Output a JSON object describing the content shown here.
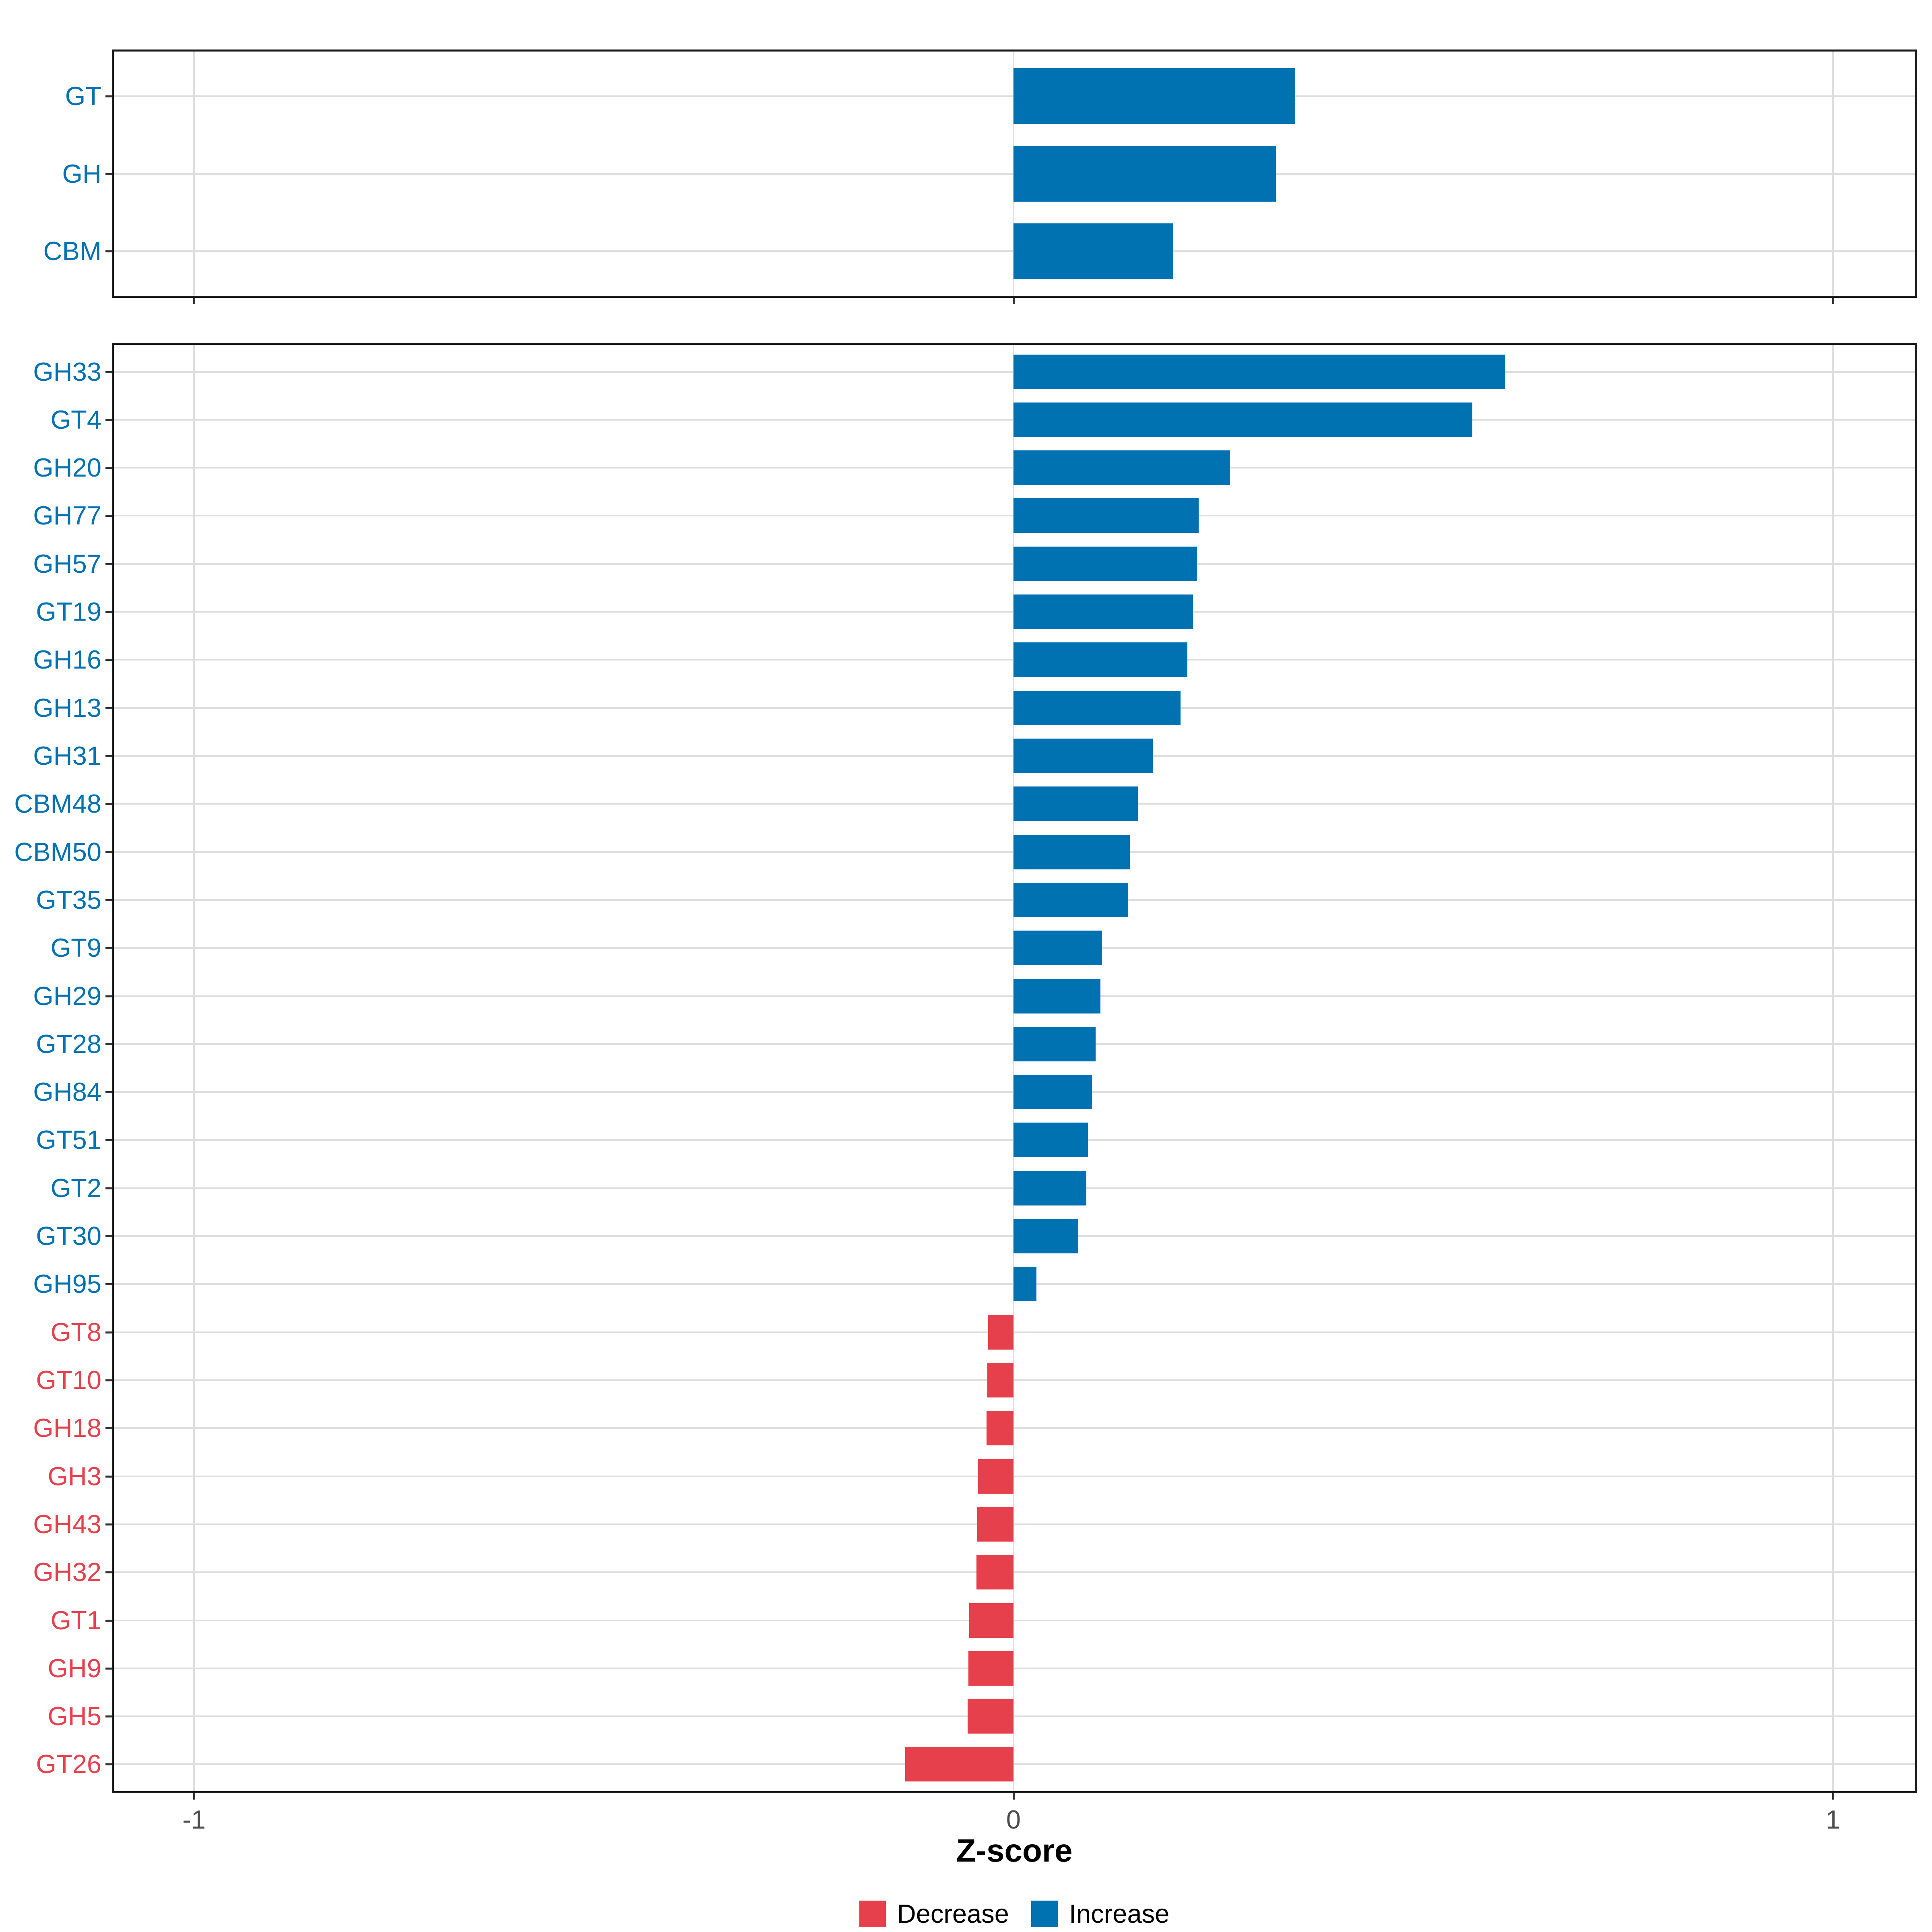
{
  "axis": {
    "xlabel": "Z-score",
    "ticks": [
      {
        "value": -1,
        "label": "-1"
      },
      {
        "value": 0,
        "label": "0"
      },
      {
        "value": 1,
        "label": "1"
      }
    ]
  },
  "legend": {
    "entries": [
      {
        "label": "Decrease",
        "color": "#e6404d"
      },
      {
        "label": "Increase",
        "color": "#0072b2"
      }
    ]
  },
  "colors": {
    "increase": "#0072b2",
    "decrease": "#e6404d",
    "grid": "#dedede",
    "panel_border": "#1a1a1a",
    "tick_mark": "#333333",
    "axis_text": "#4d4d4d"
  },
  "chart_data": [
    {
      "type": "bar",
      "orientation": "horizontal",
      "panel": "top",
      "categories": [
        "GT",
        "GH",
        "CBM"
      ],
      "values": [
        0.344,
        0.32,
        0.195
      ],
      "directions": [
        "Increase",
        "Increase",
        "Increase"
      ],
      "xlim": [
        -1.1,
        1.1
      ],
      "x_gridlines": [
        -1,
        0,
        1
      ],
      "grid": true
    },
    {
      "type": "bar",
      "orientation": "horizontal",
      "panel": "bottom",
      "categories": [
        "GH33",
        "GT4",
        "GH20",
        "GH77",
        "GH57",
        "GT19",
        "GH16",
        "GH13",
        "GH31",
        "CBM48",
        "CBM50",
        "GT35",
        "GT9",
        "GH29",
        "GT28",
        "GH84",
        "GT51",
        "GT2",
        "GT30",
        "GH95",
        "GT8",
        "GT10",
        "GH18",
        "GH3",
        "GH43",
        "GH32",
        "GT1",
        "GH9",
        "GH5",
        "GT26"
      ],
      "values": [
        0.6,
        0.56,
        0.264,
        0.226,
        0.224,
        0.219,
        0.212,
        0.204,
        0.17,
        0.152,
        0.142,
        0.14,
        0.108,
        0.106,
        0.1,
        0.096,
        0.091,
        0.089,
        0.079,
        0.028,
        -0.031,
        -0.032,
        -0.033,
        -0.043,
        -0.044,
        -0.045,
        -0.054,
        -0.055,
        -0.056,
        -0.132
      ],
      "directions": [
        "Increase",
        "Increase",
        "Increase",
        "Increase",
        "Increase",
        "Increase",
        "Increase",
        "Increase",
        "Increase",
        "Increase",
        "Increase",
        "Increase",
        "Increase",
        "Increase",
        "Increase",
        "Increase",
        "Increase",
        "Increase",
        "Increase",
        "Increase",
        "Decrease",
        "Decrease",
        "Decrease",
        "Decrease",
        "Decrease",
        "Decrease",
        "Decrease",
        "Decrease",
        "Decrease",
        "Decrease"
      ],
      "xlabel": "Z-score",
      "xlim": [
        -1.1,
        1.1
      ],
      "x_gridlines": [
        -1,
        0,
        1
      ],
      "grid": true,
      "legend_position": "bottom"
    }
  ]
}
